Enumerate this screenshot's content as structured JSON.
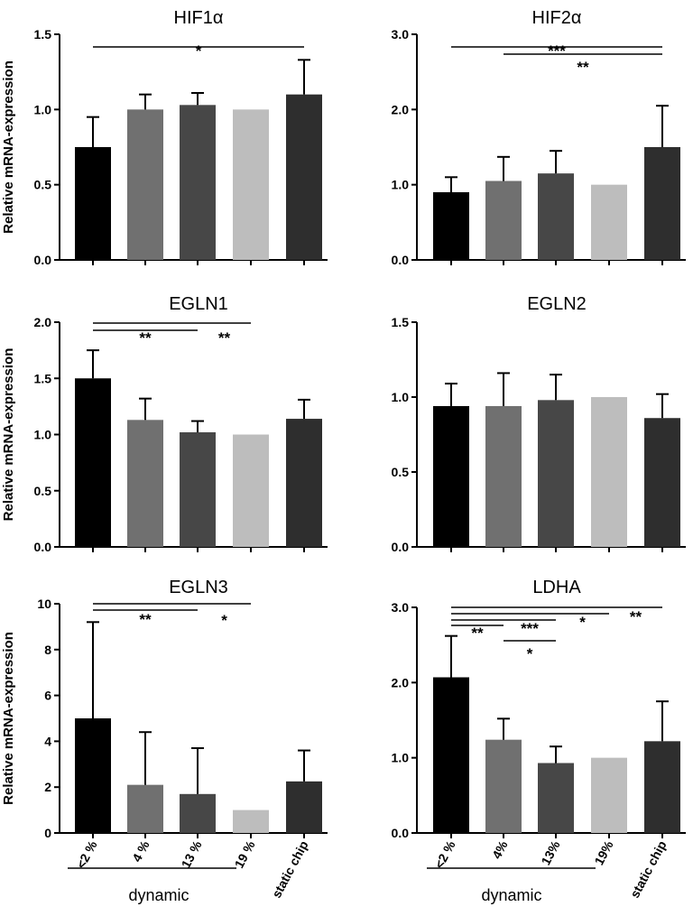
{
  "chart_data": [
    {
      "type": "bar",
      "title": "HIF1α",
      "ylabel": "Relative mRNA-expression",
      "xlabel": "",
      "ylim": [
        0,
        1.5
      ],
      "yticks": [
        "0.0",
        "0.5",
        "1.0",
        "1.5"
      ],
      "categories": [
        "<2 %",
        "4 %",
        "13 %",
        "19 %",
        "static chip"
      ],
      "values": [
        0.75,
        1.0,
        1.03,
        1.0,
        1.1
      ],
      "errors": [
        0.2,
        0.1,
        0.08,
        0.0,
        0.23
      ],
      "colors": [
        "#000000",
        "#707070",
        "#474747",
        "#bdbdbd",
        "#2e2e2e"
      ],
      "significance": [
        {
          "from": 0,
          "to": 4,
          "label": "*"
        }
      ]
    },
    {
      "type": "bar",
      "title": "HIF2α",
      "ylabel": "",
      "xlabel": "",
      "ylim": [
        0,
        3.0
      ],
      "yticks": [
        "0.0",
        "1.0",
        "2.0",
        "3.0"
      ],
      "categories": [
        "<2 %",
        "4 %",
        "13 %",
        "19 %",
        "static chip"
      ],
      "values": [
        0.9,
        1.05,
        1.15,
        1.0,
        1.5
      ],
      "errors": [
        0.2,
        0.32,
        0.3,
        0.0,
        0.55
      ],
      "colors": [
        "#000000",
        "#707070",
        "#474747",
        "#bdbdbd",
        "#2e2e2e"
      ],
      "significance": [
        {
          "from": 0,
          "to": 4,
          "label": "***"
        },
        {
          "from": 1,
          "to": 4,
          "label": "**"
        }
      ]
    },
    {
      "type": "bar",
      "title": "EGLN1",
      "ylabel": "Relative mRNA-expression",
      "xlabel": "",
      "ylim": [
        0,
        2.0
      ],
      "yticks": [
        "0.0",
        "0.5",
        "1.0",
        "1.5",
        "2.0"
      ],
      "categories": [
        "<2 %",
        "4 %",
        "13 %",
        "19 %",
        "static chip"
      ],
      "values": [
        1.5,
        1.13,
        1.02,
        1.0,
        1.14
      ],
      "errors": [
        0.25,
        0.19,
        0.1,
        0.0,
        0.17
      ],
      "colors": [
        "#000000",
        "#707070",
        "#474747",
        "#bdbdbd",
        "#2e2e2e"
      ],
      "significance": [
        {
          "from": 0,
          "to": 3,
          "label": "**"
        },
        {
          "from": 0,
          "to": 2,
          "label": "**"
        }
      ]
    },
    {
      "type": "bar",
      "title": "EGLN2",
      "ylabel": "",
      "xlabel": "",
      "ylim": [
        0,
        1.5
      ],
      "yticks": [
        "0.0",
        "0.5",
        "1.0",
        "1.5"
      ],
      "categories": [
        "<2 %",
        "4 %",
        "13 %",
        "19 %",
        "static chip"
      ],
      "values": [
        0.94,
        0.94,
        0.98,
        1.0,
        0.86
      ],
      "errors": [
        0.15,
        0.22,
        0.17,
        0.0,
        0.16
      ],
      "colors": [
        "#000000",
        "#707070",
        "#474747",
        "#bdbdbd",
        "#2e2e2e"
      ],
      "significance": []
    },
    {
      "type": "bar",
      "title": "EGLN3",
      "ylabel": "Relative mRNA-expression",
      "xlabel": "",
      "ylim": [
        0,
        10
      ],
      "yticks": [
        "0",
        "2",
        "4",
        "6",
        "8",
        "10"
      ],
      "categories": [
        "<2 %",
        "4 %",
        "13 %",
        "19 %",
        "static chip"
      ],
      "values": [
        5.0,
        2.1,
        1.7,
        1.0,
        2.25
      ],
      "errors": [
        4.2,
        2.3,
        2.0,
        0.0,
        1.35
      ],
      "colors": [
        "#000000",
        "#707070",
        "#474747",
        "#bdbdbd",
        "#2e2e2e"
      ],
      "significance": [
        {
          "from": 0,
          "to": 3,
          "label": "*"
        },
        {
          "from": 0,
          "to": 2,
          "label": "**"
        }
      ]
    },
    {
      "type": "bar",
      "title": "LDHA",
      "ylabel": "",
      "xlabel": "",
      "ylim": [
        0,
        3.0
      ],
      "yticks": [
        "0.0",
        "1.0",
        "2.0",
        "3.0"
      ],
      "categories": [
        "<2 %",
        "4%",
        "13%",
        "19%",
        "static chip"
      ],
      "values": [
        2.07,
        1.24,
        0.93,
        1.0,
        1.22
      ],
      "errors": [
        0.55,
        0.28,
        0.22,
        0.0,
        0.53
      ],
      "colors": [
        "#000000",
        "#707070",
        "#474747",
        "#bdbdbd",
        "#2e2e2e"
      ],
      "significance": [
        {
          "from": 0,
          "to": 4,
          "label": "**"
        },
        {
          "from": 0,
          "to": 3,
          "label": "*"
        },
        {
          "from": 0,
          "to": 2,
          "label": "***"
        },
        {
          "from": 0,
          "to": 1,
          "label": "**"
        },
        {
          "from": 1,
          "to": 2,
          "label": "*"
        }
      ]
    }
  ],
  "group_labels": {
    "dynamic": "dynamic"
  }
}
